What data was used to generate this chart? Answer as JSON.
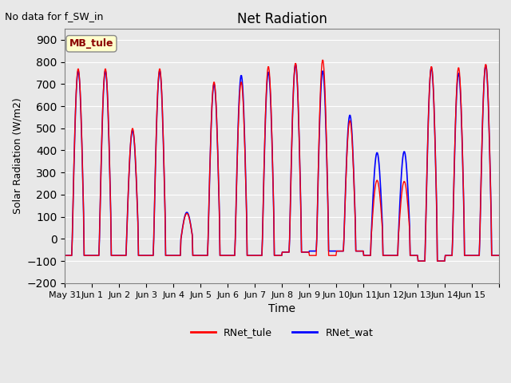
{
  "title": "Net Radiation",
  "subtitle": "No data for f_SW_in",
  "ylabel": "Solar Radiation (W/m2)",
  "xlabel": "Time",
  "ylim": [
    -200,
    950
  ],
  "yticks": [
    -200,
    -100,
    0,
    100,
    200,
    300,
    400,
    500,
    600,
    700,
    800,
    900
  ],
  "background_color": "#e8e8e8",
  "plot_bg_color": "#e8e8e8",
  "line1_color": "red",
  "line1_label": "RNet_tule",
  "line2_color": "blue",
  "line2_label": "RNet_wat",
  "legend_label": "MB_tule",
  "legend_bg": "#ffffcc",
  "legend_border": "#aaaaaa",
  "num_days": 16,
  "xtick_positions": [
    0,
    1,
    2,
    3,
    4,
    5,
    6,
    7,
    8,
    9,
    10,
    11,
    12,
    13,
    14,
    15,
    16
  ],
  "xticklabels": [
    "May 31",
    "Jun 1",
    "Jun 2",
    "Jun 3",
    "Jun 4",
    "Jun 5",
    "Jun 6",
    "Jun 7",
    "Jun 8",
    "Jun 9",
    "Jun 10",
    "Jun 11",
    "Jun 12",
    "Jun 13",
    "Jun 14",
    "Jun 15",
    ""
  ],
  "peaks_tule": [
    770,
    770,
    500,
    770,
    115,
    710,
    710,
    780,
    795,
    810,
    535,
    265,
    260,
    780,
    775,
    790
  ],
  "peaks_wat": [
    760,
    760,
    490,
    760,
    120,
    700,
    740,
    755,
    790,
    760,
    560,
    390,
    395,
    775,
    750,
    785
  ],
  "night_tule": [
    -75,
    -75,
    -75,
    -75,
    -75,
    -75,
    -75,
    -75,
    -60,
    -75,
    -55,
    -75,
    -75,
    -100,
    -75,
    -75
  ],
  "night_wat": [
    -75,
    -75,
    -75,
    -75,
    -75,
    -75,
    -75,
    -75,
    -60,
    -55,
    -55,
    -75,
    -75,
    -100,
    -75,
    -75
  ],
  "hours_per_day": 48
}
